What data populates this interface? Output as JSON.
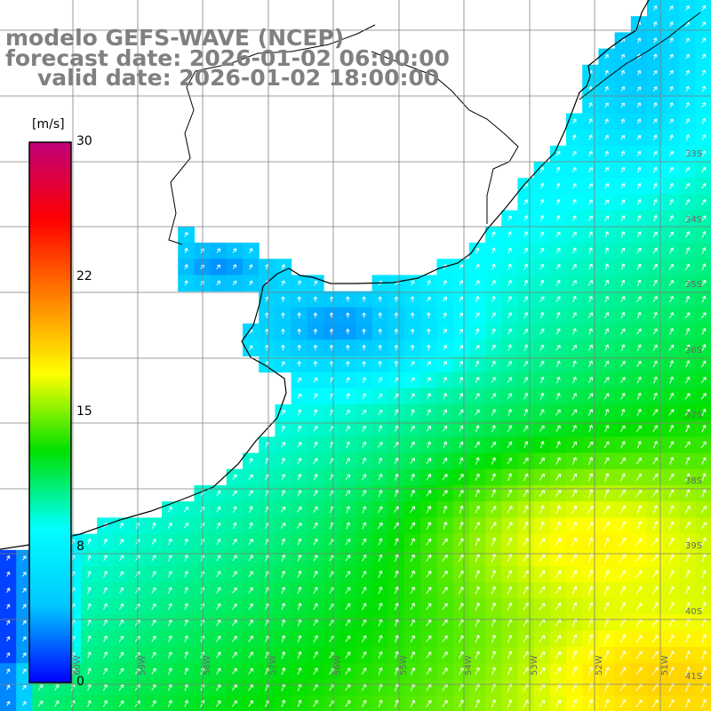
{
  "header": {
    "model": "modelo GEFS-WAVE (NCEP)",
    "forecast": "forecast date: 2026-01-02 06:00:00",
    "valid": "valid date: 2026-01-02 18:00:00"
  },
  "colorbar": {
    "unit": "[m/s]",
    "min": 0,
    "max": 30,
    "ticks": [
      {
        "label": "30",
        "value": 30
      },
      {
        "label": "22",
        "value": 22.5
      },
      {
        "label": "15",
        "value": 15
      },
      {
        "label": "8",
        "value": 7.5
      },
      {
        "label": "0",
        "value": 0
      }
    ],
    "colors": [
      "#0000ff",
      "#00c8ff",
      "#00ffff",
      "#00e000",
      "#ffff00",
      "#ff8000",
      "#ff0000",
      "#c0007a"
    ]
  },
  "grid": {
    "lon_labels": [
      "60W",
      "59W",
      "58W",
      "57W",
      "56W",
      "55W",
      "54W",
      "53W",
      "52W",
      "51W"
    ],
    "lat_labels": [
      "33S",
      "34S",
      "35S",
      "36S",
      "37S",
      "38S",
      "39S",
      "40S",
      "41S"
    ]
  },
  "colors": {
    "land": "#ffffff",
    "grid": "#7f7f7f",
    "coast": "#000000",
    "header": "#808080",
    "arrow": "#ffffff"
  }
}
